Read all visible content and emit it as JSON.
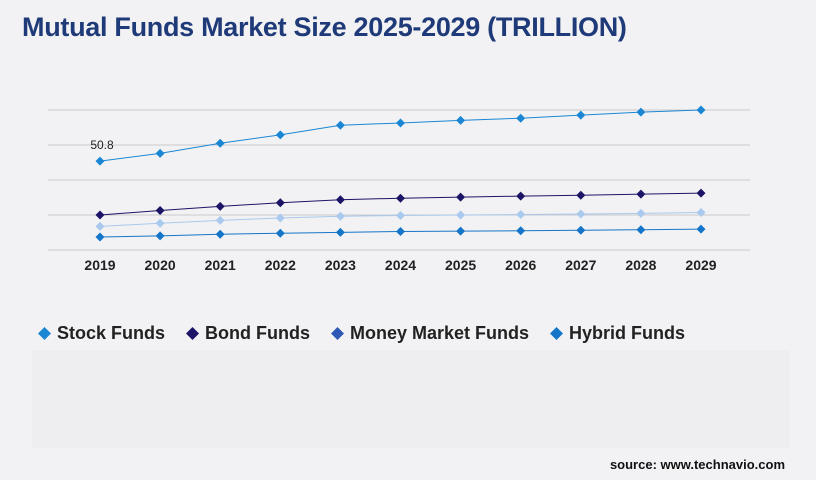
{
  "title": "Mutual Funds Market Size 2025-2029 (TRILLION)",
  "source": "source: www.technavio.com",
  "chart_data": {
    "type": "line",
    "title": "Mutual Funds Market Size 2025-2029 (TRILLION)",
    "xlabel": "",
    "ylabel": "",
    "x": [
      "2019",
      "2020",
      "2021",
      "2022",
      "2023",
      "2024",
      "2025",
      "2026",
      "2027",
      "2028",
      "2029"
    ],
    "ylim": [
      0,
      80
    ],
    "grid": true,
    "legend_position": "bottom",
    "data_labels": [
      {
        "series": 0,
        "index": 0,
        "text": "50.8"
      }
    ],
    "series": [
      {
        "name": "Stock Funds",
        "color": "#1b87d4",
        "values": [
          50.8,
          55.2,
          61.0,
          65.8,
          71.3,
          72.6,
          74.1,
          75.3,
          77.1,
          78.8,
          80.0
        ]
      },
      {
        "name": "Bond Funds",
        "color": "#1c1466",
        "values": [
          20.0,
          22.6,
          24.9,
          27.0,
          28.7,
          29.6,
          30.2,
          30.8,
          31.3,
          31.9,
          32.5
        ]
      },
      {
        "name": "Money Market Funds",
        "color": "#a9c9ee",
        "values": [
          13.5,
          15.3,
          16.9,
          18.3,
          19.3,
          19.7,
          20.0,
          20.3,
          20.6,
          20.9,
          21.4
        ]
      },
      {
        "name": "Hybrid Funds",
        "color": "#1576c9",
        "values": [
          7.4,
          8.1,
          9.0,
          9.6,
          10.1,
          10.6,
          10.8,
          11.0,
          11.3,
          11.6,
          11.9
        ]
      }
    ]
  },
  "legend": [
    {
      "label": "Stock Funds",
      "marker": "diamond-icon",
      "color": "#1b87d4"
    },
    {
      "label": "Bond Funds",
      "marker": "diamond-icon",
      "color": "#1c1466"
    },
    {
      "label": "Money Market Funds",
      "marker": "diamond-icon",
      "color": "#2d58b5"
    },
    {
      "label": "Hybrid Funds",
      "marker": "diamond-icon",
      "color": "#1576c9"
    }
  ]
}
